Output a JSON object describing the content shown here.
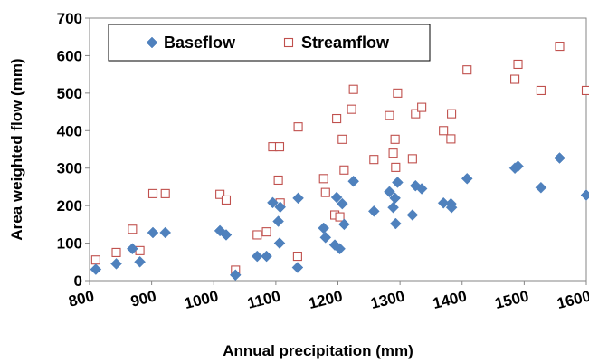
{
  "chart_data": {
    "type": "scatter",
    "title": "",
    "xlabel": "Annual precipitation (mm)",
    "ylabel": "Area weighted flow (mm)",
    "xlim": [
      800,
      1600
    ],
    "ylim": [
      0,
      700
    ],
    "xticks": [
      800,
      900,
      1000,
      1100,
      1200,
      1300,
      1400,
      1500,
      1600
    ],
    "yticks": [
      0,
      100,
      200,
      300,
      400,
      500,
      600,
      700
    ],
    "grid": false,
    "legend_position": "top-left",
    "series": [
      {
        "name": "Baseflow",
        "marker": "diamond-filled",
        "color": "#4f81bd",
        "points": [
          [
            810,
            30
          ],
          [
            843,
            45
          ],
          [
            869,
            85
          ],
          [
            881,
            50
          ],
          [
            902,
            128
          ],
          [
            922,
            128
          ],
          [
            1010,
            133
          ],
          [
            1020,
            122
          ],
          [
            1035,
            15
          ],
          [
            1070,
            65
          ],
          [
            1085,
            65
          ],
          [
            1095,
            208
          ],
          [
            1104,
            158
          ],
          [
            1106,
            100
          ],
          [
            1107,
            196
          ],
          [
            1136,
            220
          ],
          [
            1135,
            35
          ],
          [
            1177,
            140
          ],
          [
            1180,
            115
          ],
          [
            1195,
            95
          ],
          [
            1198,
            222
          ],
          [
            1203,
            85
          ],
          [
            1207,
            205
          ],
          [
            1210,
            150
          ],
          [
            1225,
            265
          ],
          [
            1258,
            185
          ],
          [
            1283,
            237
          ],
          [
            1289,
            195
          ],
          [
            1292,
            220
          ],
          [
            1293,
            152
          ],
          [
            1296,
            262
          ],
          [
            1320,
            175
          ],
          [
            1325,
            253
          ],
          [
            1335,
            245
          ],
          [
            1370,
            207
          ],
          [
            1382,
            205
          ],
          [
            1383,
            195
          ],
          [
            1408,
            272
          ],
          [
            1485,
            300
          ],
          [
            1490,
            305
          ],
          [
            1527,
            248
          ],
          [
            1557,
            327
          ],
          [
            1600,
            228
          ]
        ]
      },
      {
        "name": "Streamflow",
        "marker": "square-open",
        "color": "#c0504d",
        "points": [
          [
            810,
            55
          ],
          [
            843,
            75
          ],
          [
            869,
            137
          ],
          [
            881,
            80
          ],
          [
            902,
            232
          ],
          [
            922,
            232
          ],
          [
            1010,
            230
          ],
          [
            1020,
            215
          ],
          [
            1035,
            28
          ],
          [
            1070,
            122
          ],
          [
            1085,
            130
          ],
          [
            1095,
            357
          ],
          [
            1104,
            268
          ],
          [
            1106,
            357
          ],
          [
            1107,
            207
          ],
          [
            1136,
            410
          ],
          [
            1135,
            65
          ],
          [
            1177,
            272
          ],
          [
            1180,
            235
          ],
          [
            1195,
            175
          ],
          [
            1198,
            432
          ],
          [
            1203,
            170
          ],
          [
            1207,
            377
          ],
          [
            1210,
            295
          ],
          [
            1222,
            457
          ],
          [
            1225,
            510
          ],
          [
            1258,
            323
          ],
          [
            1283,
            440
          ],
          [
            1289,
            340
          ],
          [
            1292,
            377
          ],
          [
            1293,
            302
          ],
          [
            1296,
            500
          ],
          [
            1320,
            325
          ],
          [
            1325,
            445
          ],
          [
            1335,
            462
          ],
          [
            1370,
            400
          ],
          [
            1382,
            378
          ],
          [
            1383,
            445
          ],
          [
            1408,
            562
          ],
          [
            1485,
            537
          ],
          [
            1490,
            577
          ],
          [
            1527,
            507
          ],
          [
            1557,
            625
          ],
          [
            1600,
            507
          ]
        ]
      }
    ]
  }
}
